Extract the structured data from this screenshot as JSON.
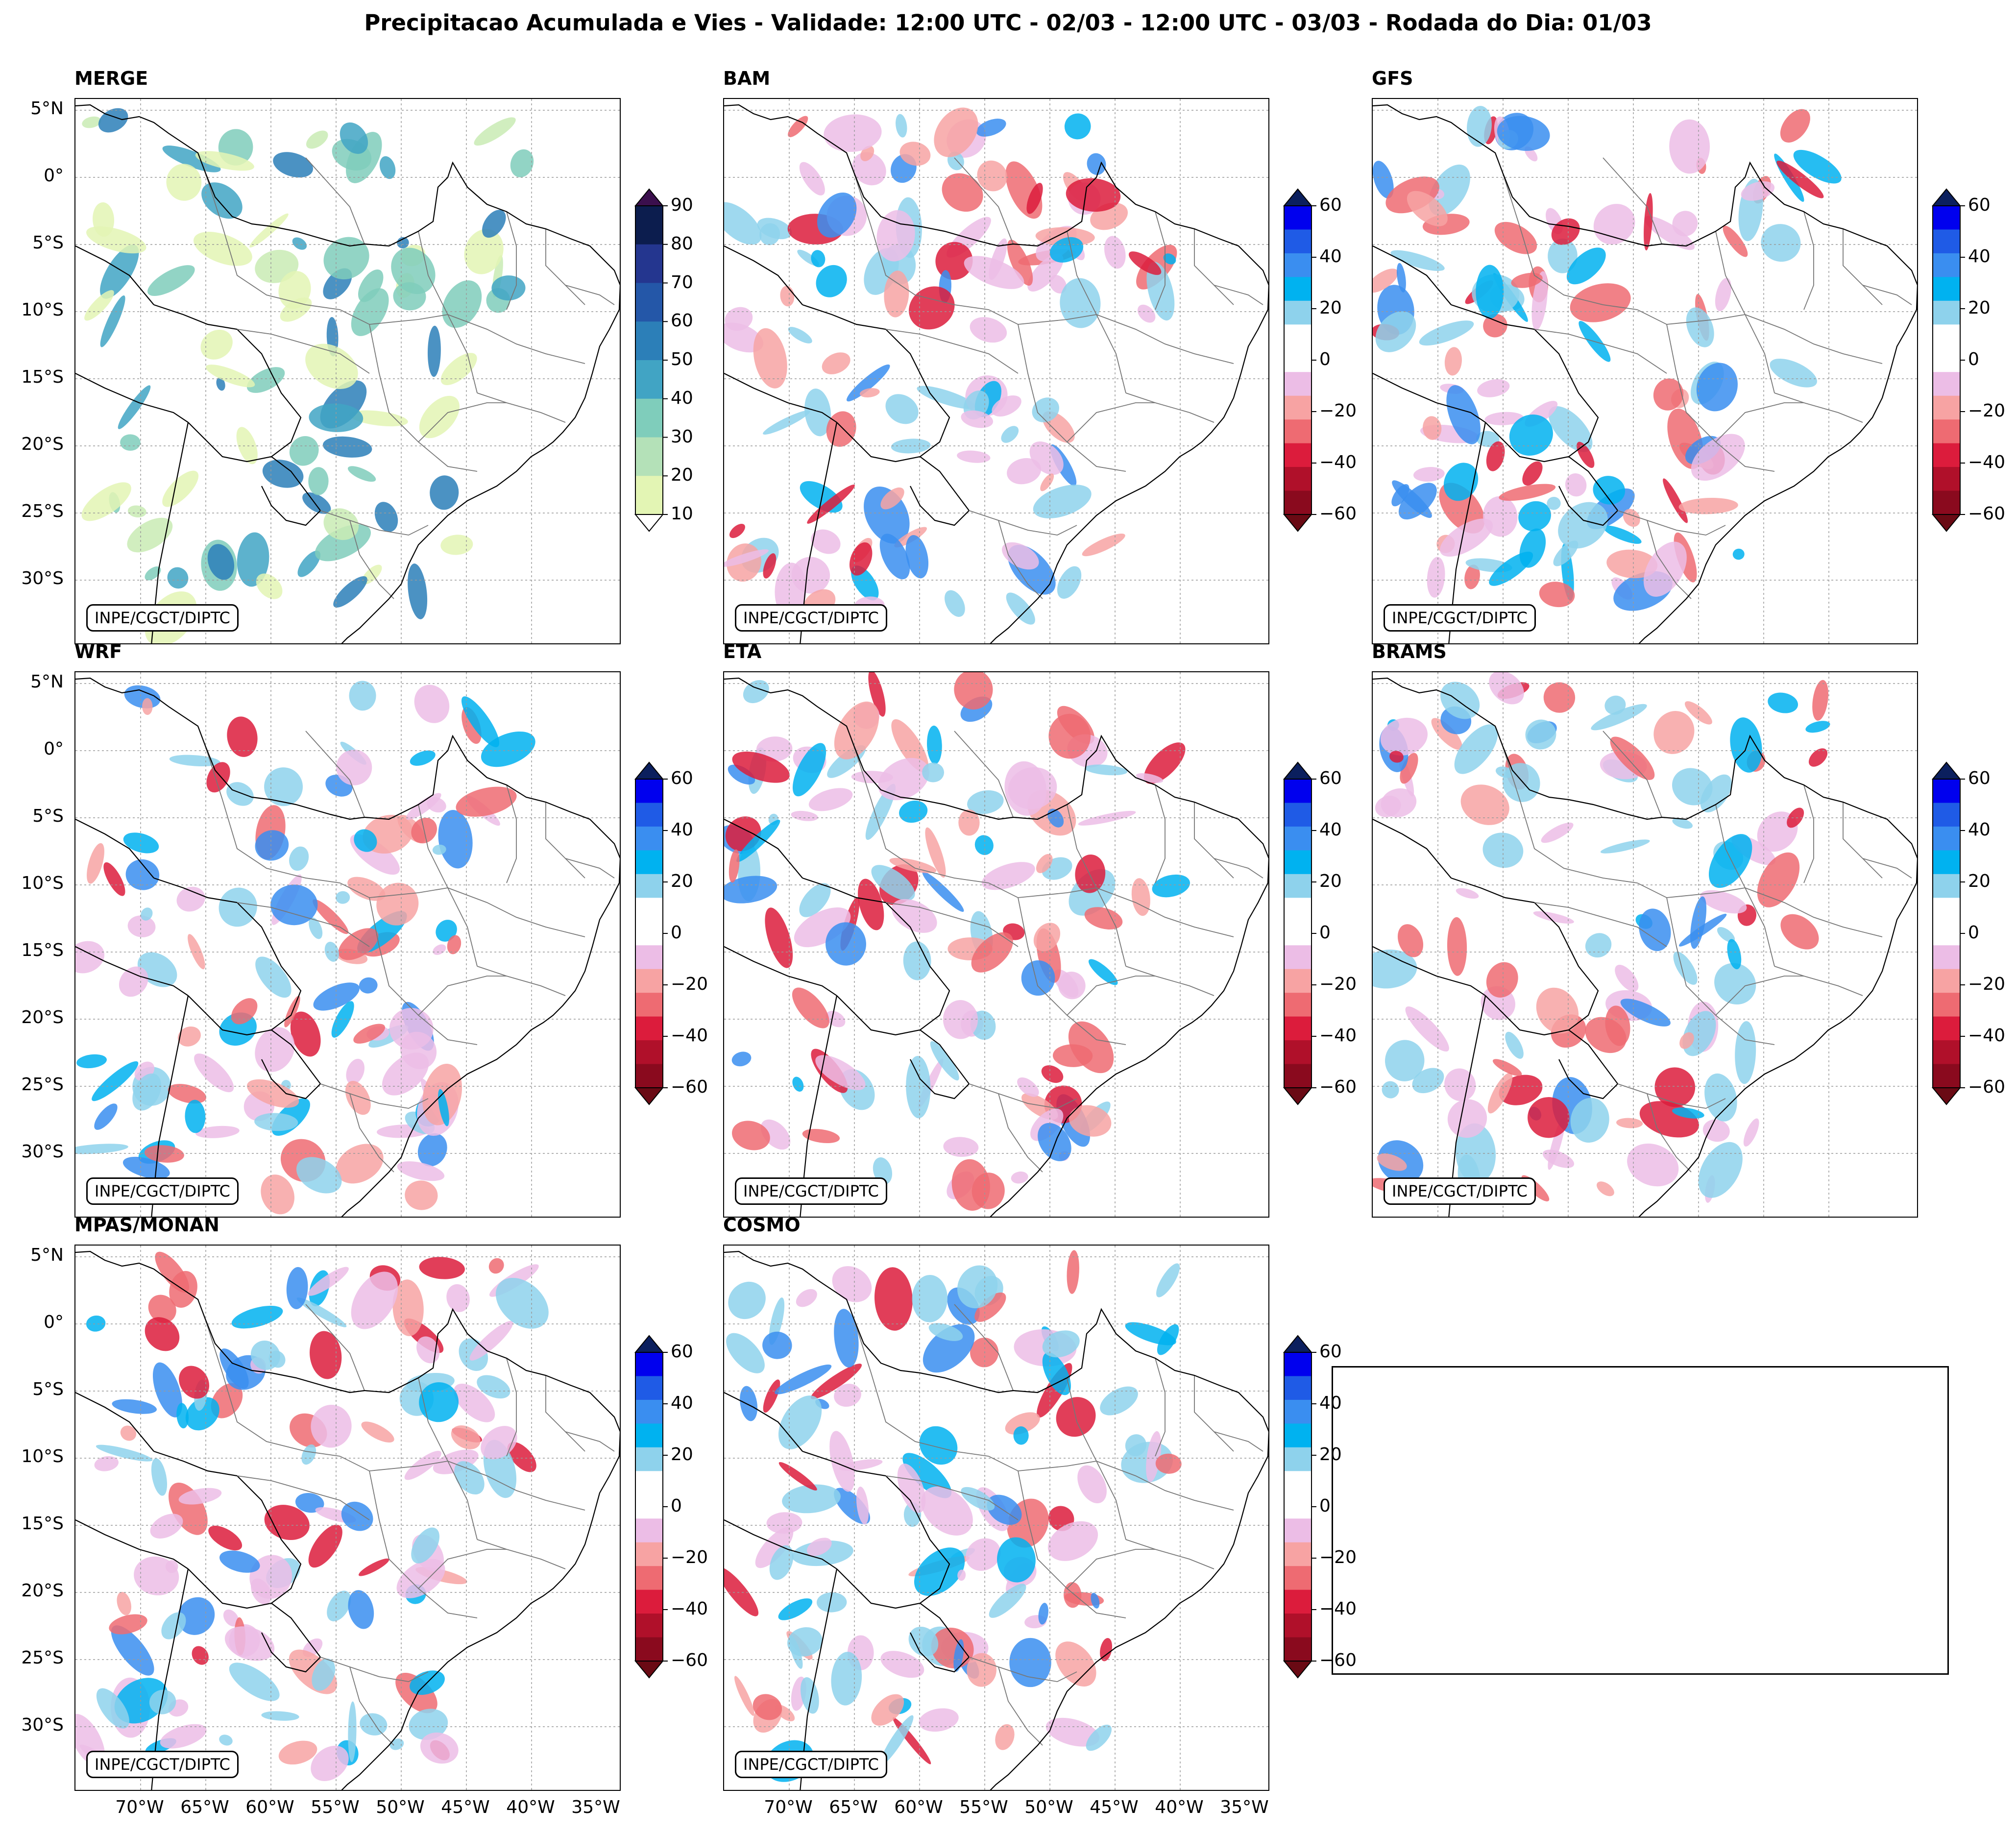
{
  "title": "Precipitacao Acumulada e Vies - Validade: 12:00 UTC - 02/03 - 12:00 UTC - 03/03 - Rodada do Dia: 01/03",
  "credit": "INPE/CGCT/DIPTC",
  "lat_labels": [
    "5°N",
    "0°",
    "5°S",
    "10°S",
    "15°S",
    "20°S",
    "25°S",
    "30°S"
  ],
  "lon_labels": [
    "70°W",
    "65°W",
    "60°W",
    "55°W",
    "50°W",
    "45°W",
    "40°W",
    "35°W"
  ],
  "panels": [
    {
      "name": "MERGE",
      "scale": "precip"
    },
    {
      "name": "BAM",
      "scale": "bias"
    },
    {
      "name": "GFS",
      "scale": "bias"
    },
    {
      "name": "WRF",
      "scale": "bias"
    },
    {
      "name": "ETA",
      "scale": "bias"
    },
    {
      "name": "BRAMS",
      "scale": "bias"
    },
    {
      "name": "MPAS/MONAN",
      "scale": "bias"
    },
    {
      "name": "COSMO",
      "scale": "bias"
    }
  ],
  "scales": {
    "precip": {
      "ticks": [
        "90",
        "80",
        "70",
        "60",
        "50",
        "40",
        "30",
        "20",
        "10"
      ],
      "colors": [
        "#0c1d4e",
        "#24368f",
        "#2457a8",
        "#2c7fb8",
        "#41a4c4",
        "#7fcdbb",
        "#b4e1b8",
        "#e3f5b4"
      ],
      "over": "#3b0f4d",
      "under": "#ffffff"
    },
    "bias": {
      "ticks": [
        "60",
        "40",
        "20",
        "0",
        "−20",
        "−40",
        "−60"
      ],
      "colors": [
        "#0000ee",
        "#1f5be6",
        "#3a8ef0",
        "#00b2f0",
        "#8ed2ec",
        "#ffffff",
        "#ffffff",
        "#ecbde6",
        "#f7a3a3",
        "#ee6b72",
        "#dc1c3c",
        "#b0102a",
        "#8a0a1e"
      ],
      "over": "#0b1f5e",
      "under": "#6a0a14"
    }
  }
}
